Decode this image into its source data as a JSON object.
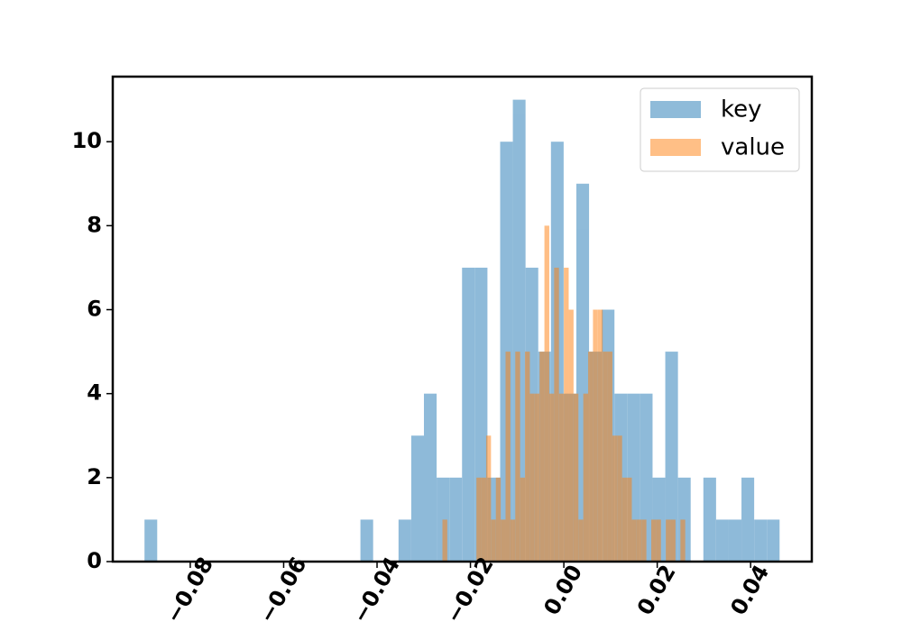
{
  "chart_data": {
    "type": "histogram",
    "xlim": [
      -0.0966,
      0.0531
    ],
    "ylim": [
      0,
      11.55
    ],
    "xticks": [
      {
        "value": -0.08,
        "label": "−0.08"
      },
      {
        "value": -0.06,
        "label": "−0.06"
      },
      {
        "value": -0.04,
        "label": "−0.04"
      },
      {
        "value": -0.02,
        "label": "−0.02"
      },
      {
        "value": 0,
        "label": "0.00"
      },
      {
        "value": 0.02,
        "label": "0.02"
      },
      {
        "value": 0.04,
        "label": "0.04"
      }
    ],
    "yticks": [
      0,
      2,
      4,
      6,
      8,
      10
    ],
    "legend": "upper right",
    "series": [
      {
        "name": "key",
        "color": "#1f77b4",
        "bins": [
          -0.0898,
          -0.08708,
          -0.08436,
          -0.08164,
          -0.07892,
          -0.0762,
          -0.07348,
          -0.07076,
          -0.06804,
          -0.06532,
          -0.0626,
          -0.05988,
          -0.05716,
          -0.05444,
          -0.05172,
          -0.049,
          -0.04628,
          -0.04356,
          -0.04084,
          -0.03812,
          -0.0354,
          -0.03268,
          -0.02996,
          -0.02724,
          -0.02452,
          -0.0218,
          -0.01908,
          -0.01636,
          -0.01364,
          -0.01092,
          -0.0082,
          -0.00548,
          -0.00276,
          -4e-05,
          0.00268,
          0.0054,
          0.00812,
          0.01084,
          0.01356,
          0.01628,
          0.019,
          0.02172,
          0.02444,
          0.02716,
          0.02988,
          0.0326,
          0.03532,
          0.03804,
          0.04076,
          0.04348,
          0.0462
        ],
        "values": [
          1,
          0,
          0,
          0,
          0,
          0,
          0,
          0,
          0,
          0,
          0,
          0,
          0,
          0,
          0,
          0,
          0,
          1,
          0,
          0,
          1,
          3,
          4,
          2,
          2,
          7,
          7,
          2,
          10,
          11,
          7,
          5,
          10,
          4,
          9,
          5,
          6,
          4,
          4,
          4,
          2,
          5,
          2,
          0,
          2,
          1,
          1,
          2,
          1,
          1
        ]
      },
      {
        "name": "value",
        "color": "#ff7f0e",
        "bins": [
          -0.026,
          -0.02496,
          -0.02392,
          -0.02288,
          -0.02184,
          -0.0208,
          -0.01976,
          -0.01872,
          -0.01768,
          -0.01664,
          -0.0156,
          -0.01456,
          -0.01352,
          -0.01248,
          -0.01144,
          -0.0104,
          -0.00936,
          -0.00832,
          -0.00728,
          -0.00624,
          -0.0052,
          -0.00416,
          -0.00312,
          -0.00208,
          -0.00104,
          0,
          0.00104,
          0.00208,
          0.00312,
          0.00416,
          0.0052,
          0.00624,
          0.00728,
          0.00832,
          0.00936,
          0.0104,
          0.01144,
          0.01248,
          0.01352,
          0.01456,
          0.0156,
          0.01664,
          0.01768,
          0.01872,
          0.01976,
          0.0208,
          0.02184,
          0.02288,
          0.02392,
          0.02496,
          0.026
        ],
        "values": [
          1,
          0,
          0,
          0,
          0,
          0,
          0,
          2,
          2,
          3,
          1,
          2,
          1,
          5,
          1,
          5,
          2,
          5,
          4,
          4,
          5,
          8,
          4,
          7,
          4,
          7,
          6,
          4,
          1,
          4,
          5,
          6,
          6,
          5,
          5,
          3,
          3,
          2,
          2,
          1,
          1,
          1,
          0,
          1,
          1,
          0,
          1,
          1,
          0,
          1
        ]
      }
    ]
  }
}
